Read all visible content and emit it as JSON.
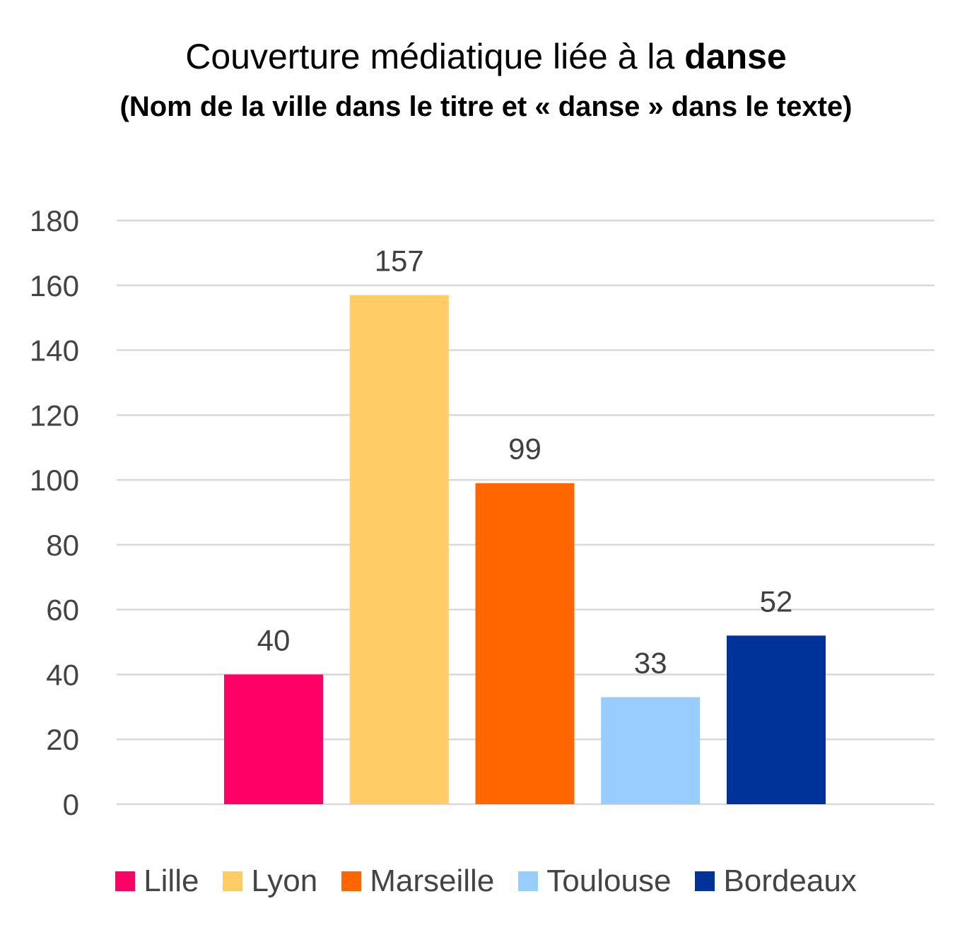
{
  "chart_data": {
    "type": "bar",
    "title_prefix": "Couverture médiatique liée à la ",
    "title_emphasis": "danse",
    "subtitle": "(Nom de la ville dans le titre et « danse » dans le texte)",
    "categories": [
      "Lille",
      "Lyon",
      "Marseille",
      "Toulouse",
      "Bordeaux"
    ],
    "values": [
      40,
      157,
      99,
      33,
      52
    ],
    "colors": [
      "#FF0066",
      "#FFCC66",
      "#FF6600",
      "#99CCFF",
      "#003399"
    ],
    "ylim": [
      0,
      180
    ],
    "yticks": [
      0,
      20,
      40,
      60,
      80,
      100,
      120,
      140,
      160,
      180
    ],
    "grid": true,
    "legend_position": "bottom",
    "data_labels": [
      "40",
      "157",
      "99",
      "33",
      "52"
    ]
  }
}
